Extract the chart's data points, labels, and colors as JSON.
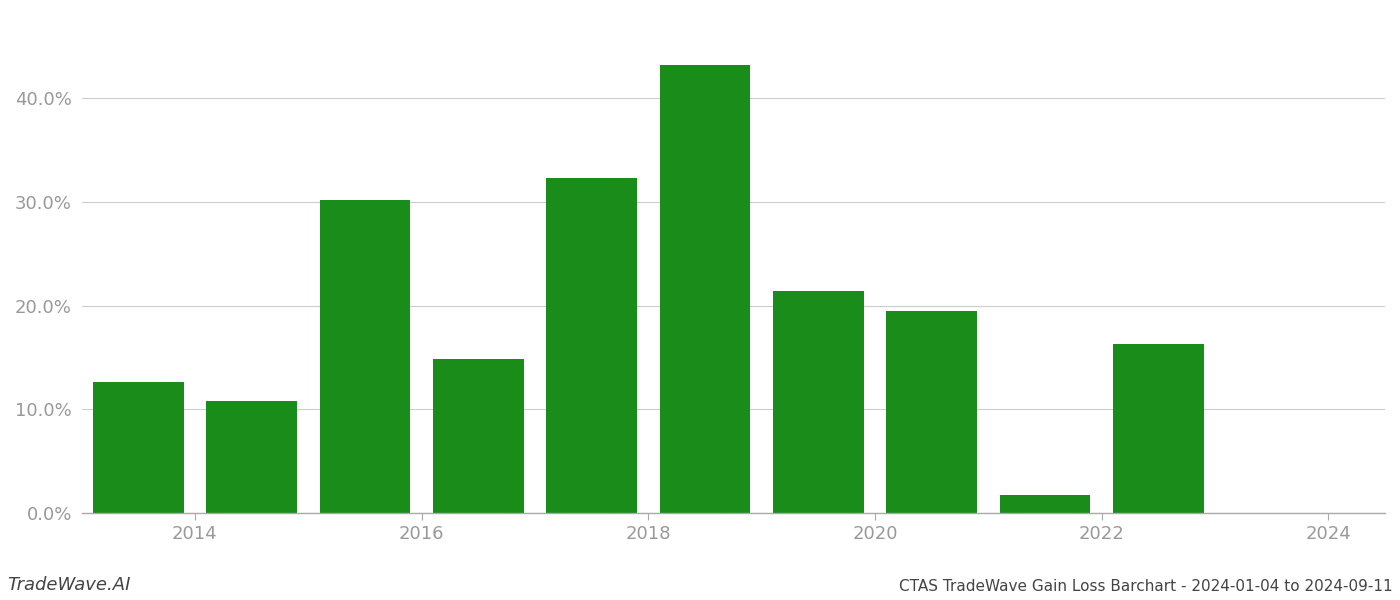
{
  "bar_positions": [
    2013.5,
    2014.5,
    2015.5,
    2016.5,
    2017.5,
    2018.5,
    2019.5,
    2020.5,
    2021.5,
    2022.5,
    2023.5
  ],
  "values": [
    0.126,
    0.108,
    0.302,
    0.149,
    0.323,
    0.432,
    0.214,
    0.195,
    0.018,
    0.163,
    0.0
  ],
  "bar_color": "#1a8c1a",
  "background_color": "#ffffff",
  "grid_color": "#cccccc",
  "chart_title": "CTAS TradeWave Gain Loss Barchart - 2024-01-04 to 2024-09-11",
  "watermark": "TradeWave.AI",
  "ylim": [
    0,
    0.48
  ],
  "yticks": [
    0.0,
    0.1,
    0.2,
    0.3,
    0.4
  ],
  "ytick_labels": [
    "0.0%",
    "10.0%",
    "20.0%",
    "30.0%",
    "40.0%"
  ],
  "xticks": [
    2014,
    2016,
    2018,
    2020,
    2022,
    2024
  ],
  "xtick_labels": [
    "2014",
    "2016",
    "2018",
    "2020",
    "2022",
    "2024"
  ],
  "xlim": [
    2013.0,
    2024.5
  ],
  "tick_color": "#999999",
  "spine_color": "#aaaaaa",
  "title_fontsize": 11,
  "watermark_fontsize": 13,
  "axis_fontsize": 13,
  "bar_width": 0.8
}
